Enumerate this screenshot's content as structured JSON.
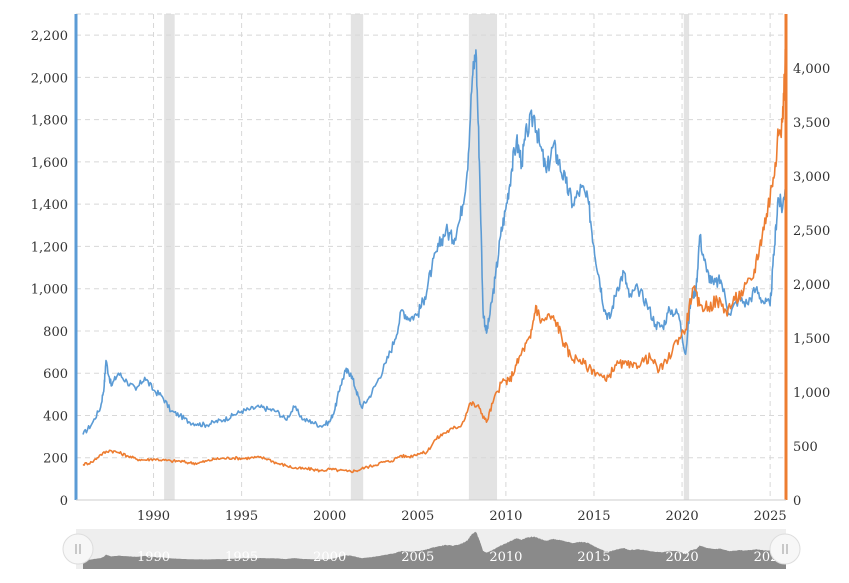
{
  "chart_data": {
    "type": "line",
    "title": "",
    "x_start": 1986,
    "x_end": 2025.9,
    "xlim": [
      1985.6,
      2025.9
    ],
    "x_ticks": [
      "1990",
      "1995",
      "2000",
      "2005",
      "2010",
      "2015",
      "2020",
      "2025"
    ],
    "y_left": {
      "min": 0,
      "max": 2300,
      "ticks": [
        0,
        200,
        400,
        600,
        800,
        1000,
        1200,
        1400,
        1600,
        1800,
        2000,
        2200
      ],
      "tick_labels": [
        "0",
        "200",
        "400",
        "600",
        "800",
        "1,000",
        "1,200",
        "1,400",
        "1,600",
        "1,800",
        "2,000",
        "2,200"
      ]
    },
    "y_right": {
      "min": 0,
      "max": 4500,
      "ticks": [
        0,
        500,
        1000,
        1500,
        2000,
        2500,
        3000,
        3500,
        4000
      ],
      "tick_labels": [
        "0",
        "500",
        "1,000",
        "1,500",
        "2,000",
        "2,500",
        "3,000",
        "3,500",
        "4,000"
      ]
    },
    "recessions": [
      [
        1990.6,
        1991.2
      ],
      [
        2001.2,
        2001.9
      ],
      [
        2007.9,
        2009.5
      ],
      [
        2020.1,
        2020.4
      ]
    ],
    "grid": true,
    "series": [
      {
        "axis": "left",
        "color": "#5b9bd5",
        "points": [
          [
            1986.0,
            310
          ],
          [
            1986.5,
            360
          ],
          [
            1987.0,
            440
          ],
          [
            1987.2,
            540
          ],
          [
            1987.3,
            660
          ],
          [
            1987.6,
            540
          ],
          [
            1988.0,
            600
          ],
          [
            1988.5,
            560
          ],
          [
            1989.0,
            520
          ],
          [
            1989.5,
            580
          ],
          [
            1990.0,
            520
          ],
          [
            1990.5,
            490
          ],
          [
            1991.0,
            420
          ],
          [
            1991.5,
            400
          ],
          [
            1992.0,
            370
          ],
          [
            1992.5,
            360
          ],
          [
            1993.0,
            355
          ],
          [
            1993.5,
            370
          ],
          [
            1994.0,
            380
          ],
          [
            1994.5,
            400
          ],
          [
            1995.0,
            420
          ],
          [
            1995.5,
            430
          ],
          [
            1996.0,
            440
          ],
          [
            1996.5,
            430
          ],
          [
            1997.0,
            420
          ],
          [
            1997.5,
            380
          ],
          [
            1998.0,
            440
          ],
          [
            1998.5,
            380
          ],
          [
            1999.0,
            370
          ],
          [
            1999.5,
            350
          ],
          [
            2000.0,
            370
          ],
          [
            2000.3,
            430
          ],
          [
            2000.6,
            540
          ],
          [
            2000.9,
            610
          ],
          [
            2001.2,
            600
          ],
          [
            2001.5,
            520
          ],
          [
            2001.8,
            440
          ],
          [
            2002.2,
            480
          ],
          [
            2002.7,
            560
          ],
          [
            2003.2,
            650
          ],
          [
            2003.7,
            760
          ],
          [
            2004.1,
            900
          ],
          [
            2004.5,
            860
          ],
          [
            2005.0,
            880
          ],
          [
            2005.4,
            960
          ],
          [
            2005.8,
            1100
          ],
          [
            2006.2,
            1200
          ],
          [
            2006.6,
            1280
          ],
          [
            2007.0,
            1230
          ],
          [
            2007.4,
            1330
          ],
          [
            2007.8,
            1550
          ],
          [
            2008.1,
            2000
          ],
          [
            2008.3,
            2130
          ],
          [
            2008.5,
            1600
          ],
          [
            2008.7,
            900
          ],
          [
            2008.9,
            790
          ],
          [
            2009.1,
            880
          ],
          [
            2009.4,
            1050
          ],
          [
            2009.7,
            1250
          ],
          [
            2010.0,
            1380
          ],
          [
            2010.3,
            1550
          ],
          [
            2010.6,
            1700
          ],
          [
            2010.9,
            1600
          ],
          [
            2011.2,
            1750
          ],
          [
            2011.6,
            1820
          ],
          [
            2011.9,
            1690
          ],
          [
            2012.3,
            1550
          ],
          [
            2012.7,
            1680
          ],
          [
            2013.0,
            1600
          ],
          [
            2013.4,
            1500
          ],
          [
            2013.8,
            1400
          ],
          [
            2014.3,
            1480
          ],
          [
            2014.7,
            1400
          ],
          [
            2015.0,
            1200
          ],
          [
            2015.3,
            1050
          ],
          [
            2015.6,
            900
          ],
          [
            2015.9,
            860
          ],
          [
            2016.3,
            1000
          ],
          [
            2016.7,
            1080
          ],
          [
            2017.0,
            960
          ],
          [
            2017.5,
            1000
          ],
          [
            2018.0,
            930
          ],
          [
            2018.5,
            830
          ],
          [
            2018.9,
            820
          ],
          [
            2019.3,
            900
          ],
          [
            2019.8,
            880
          ],
          [
            2020.2,
            690
          ],
          [
            2020.5,
            950
          ],
          [
            2020.8,
            1000
          ],
          [
            2021.0,
            1250
          ],
          [
            2021.4,
            1080
          ],
          [
            2021.8,
            1020
          ],
          [
            2022.2,
            1040
          ],
          [
            2022.7,
            880
          ],
          [
            2023.2,
            950
          ],
          [
            2023.7,
            930
          ],
          [
            2024.2,
            1000
          ],
          [
            2024.6,
            940
          ],
          [
            2025.0,
            920
          ],
          [
            2025.25,
            1200
          ],
          [
            2025.45,
            1430
          ],
          [
            2025.7,
            1380
          ],
          [
            2025.9,
            1520
          ]
        ]
      },
      {
        "axis": "right",
        "color": "#ed7d31",
        "points": [
          [
            1986.0,
            330
          ],
          [
            1986.5,
            350
          ],
          [
            1987.0,
            420
          ],
          [
            1987.5,
            460
          ],
          [
            1988.0,
            440
          ],
          [
            1988.5,
            410
          ],
          [
            1989.0,
            380
          ],
          [
            1989.5,
            370
          ],
          [
            1990.0,
            380
          ],
          [
            1990.5,
            370
          ],
          [
            1991.0,
            360
          ],
          [
            1991.5,
            360
          ],
          [
            1992.0,
            345
          ],
          [
            1992.5,
            340
          ],
          [
            1993.0,
            360
          ],
          [
            1993.5,
            380
          ],
          [
            1994.0,
            385
          ],
          [
            1994.5,
            390
          ],
          [
            1995.0,
            385
          ],
          [
            1995.5,
            390
          ],
          [
            1996.0,
            395
          ],
          [
            1996.5,
            380
          ],
          [
            1997.0,
            340
          ],
          [
            1997.5,
            320
          ],
          [
            1998.0,
            295
          ],
          [
            1998.5,
            290
          ],
          [
            1999.0,
            285
          ],
          [
            1999.5,
            270
          ],
          [
            2000.0,
            285
          ],
          [
            2000.5,
            275
          ],
          [
            2001.0,
            265
          ],
          [
            2001.5,
            270
          ],
          [
            2002.0,
            300
          ],
          [
            2002.5,
            320
          ],
          [
            2003.0,
            350
          ],
          [
            2003.5,
            360
          ],
          [
            2004.0,
            410
          ],
          [
            2004.5,
            400
          ],
          [
            2005.0,
            430
          ],
          [
            2005.5,
            440
          ],
          [
            2006.0,
            560
          ],
          [
            2006.5,
            620
          ],
          [
            2007.0,
            660
          ],
          [
            2007.5,
            700
          ],
          [
            2008.0,
            900
          ],
          [
            2008.5,
            850
          ],
          [
            2008.9,
            720
          ],
          [
            2009.3,
            920
          ],
          [
            2009.8,
            1100
          ],
          [
            2010.2,
            1100
          ],
          [
            2010.6,
            1250
          ],
          [
            2011.0,
            1400
          ],
          [
            2011.4,
            1500
          ],
          [
            2011.7,
            1800
          ],
          [
            2012.0,
            1650
          ],
          [
            2012.5,
            1700
          ],
          [
            2012.9,
            1640
          ],
          [
            2013.3,
            1450
          ],
          [
            2013.7,
            1320
          ],
          [
            2014.2,
            1300
          ],
          [
            2014.7,
            1220
          ],
          [
            2015.2,
            1180
          ],
          [
            2015.7,
            1100
          ],
          [
            2016.2,
            1250
          ],
          [
            2016.7,
            1260
          ],
          [
            2017.2,
            1230
          ],
          [
            2017.7,
            1280
          ],
          [
            2018.2,
            1320
          ],
          [
            2018.7,
            1200
          ],
          [
            2019.2,
            1300
          ],
          [
            2019.7,
            1480
          ],
          [
            2020.2,
            1580
          ],
          [
            2020.6,
            1960
          ],
          [
            2021.0,
            1800
          ],
          [
            2021.5,
            1790
          ],
          [
            2022.0,
            1850
          ],
          [
            2022.5,
            1750
          ],
          [
            2023.0,
            1850
          ],
          [
            2023.5,
            1940
          ],
          [
            2024.0,
            2050
          ],
          [
            2024.4,
            2350
          ],
          [
            2024.8,
            2650
          ],
          [
            2025.1,
            2900
          ],
          [
            2025.4,
            3300
          ],
          [
            2025.7,
            3500
          ],
          [
            2025.85,
            4050
          ],
          [
            2025.9,
            4150
          ]
        ]
      }
    ]
  }
}
